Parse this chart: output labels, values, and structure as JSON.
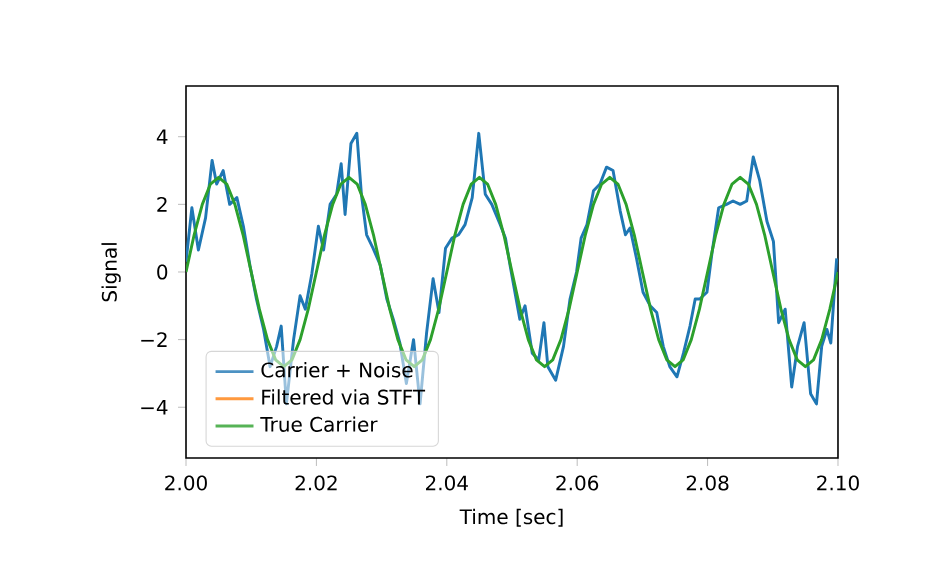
{
  "chart_data": {
    "type": "line",
    "xlabel": "Time [sec]",
    "ylabel": "Signal",
    "xlim": [
      2.0,
      2.1
    ],
    "ylim": [
      -5.5,
      5.5
    ],
    "xticks": [
      {
        "value": 2.0,
        "label": "2.00"
      },
      {
        "value": 2.02,
        "label": "2.02"
      },
      {
        "value": 2.04,
        "label": "2.04"
      },
      {
        "value": 2.06,
        "label": "2.06"
      },
      {
        "value": 2.08,
        "label": "2.08"
      },
      {
        "value": 2.1,
        "label": "2.10"
      }
    ],
    "yticks": [
      {
        "value": -4,
        "label": "−4"
      },
      {
        "value": -2,
        "label": "−2"
      },
      0,
      2,
      4
    ],
    "legend": "bottom left",
    "grid": false,
    "marker": "none",
    "line_style": "solid",
    "x": [
      2.0,
      2.00125,
      2.0025,
      2.00375,
      2.005,
      2.00625,
      2.0075,
      2.00875,
      2.01,
      2.01125,
      2.0125,
      2.01375,
      2.015,
      2.01625,
      2.0175,
      2.01875,
      2.02,
      2.02125,
      2.0225,
      2.02375,
      2.025,
      2.02625,
      2.0275,
      2.02875,
      2.03,
      2.03125,
      2.0325,
      2.03375,
      2.035,
      2.03625,
      2.0375,
      2.03875,
      2.04,
      2.04125,
      2.0425,
      2.04375,
      2.045,
      2.04625,
      2.0475,
      2.04875,
      2.05,
      2.05125,
      2.0525,
      2.05375,
      2.055,
      2.05625,
      2.0575,
      2.05875,
      2.06,
      2.06125,
      2.0625,
      2.06375,
      2.065,
      2.06625,
      2.0675,
      2.06875,
      2.07,
      2.07125,
      2.0725,
      2.07375,
      2.075,
      2.07625,
      2.0775,
      2.07875,
      2.08,
      2.08125,
      2.0825,
      2.08375,
      2.085,
      2.08625,
      2.0875,
      2.08875,
      2.09,
      2.09125,
      2.0925,
      2.09375,
      2.095,
      2.09625,
      2.0975,
      2.09875,
      2.1
    ],
    "series": [
      {
        "name": "Carrier + Noise",
        "color": "#1f77b4",
        "x": [
          2.0,
          2.0009,
          2.0019,
          2.003,
          2.004,
          2.0047,
          2.0057,
          2.0067,
          2.0078,
          2.0088,
          2.0098,
          2.0108,
          2.0119,
          2.0129,
          2.0139,
          2.0146,
          2.0154,
          2.0165,
          2.0175,
          2.0183,
          2.0193,
          2.0203,
          2.0211,
          2.0221,
          2.0231,
          2.0238,
          2.0244,
          2.0253,
          2.0262,
          2.0269,
          2.0277,
          2.0287,
          2.0298,
          2.0308,
          2.0318,
          2.0328,
          2.0338,
          2.0349,
          2.0359,
          2.0369,
          2.0379,
          2.0388,
          2.0398,
          2.0408,
          2.0418,
          2.0428,
          2.0439,
          2.0449,
          2.0459,
          2.0469,
          2.0482,
          2.049,
          2.0497,
          2.0512,
          2.052,
          2.0531,
          2.0541,
          2.0549,
          2.0555,
          2.0567,
          2.0579,
          2.0589,
          2.0599,
          2.0606,
          2.0615,
          2.0625,
          2.0635,
          2.0645,
          2.0655,
          2.0666,
          2.0674,
          2.0681,
          2.0691,
          2.0701,
          2.0712,
          2.0722,
          2.0732,
          2.0742,
          2.0753,
          2.0763,
          2.0773,
          2.0781,
          2.0788,
          2.0799,
          2.0807,
          2.0817,
          2.0829,
          2.0839,
          2.085,
          2.086,
          2.087,
          2.088,
          2.0891,
          2.0901,
          2.0909,
          2.0919,
          2.0929,
          2.0938,
          2.0948,
          2.0958,
          2.0967,
          2.0975,
          2.0983,
          2.0989,
          2.0998
        ],
        "values": [
          0.3,
          1.9,
          0.65,
          1.6,
          3.3,
          2.6,
          3.0,
          2.0,
          2.2,
          1.35,
          0.2,
          -0.8,
          -1.7,
          -2.8,
          -2.2,
          -1.6,
          -3.9,
          -2.0,
          -0.7,
          -1.1,
          -0.05,
          1.35,
          0.65,
          2.0,
          2.3,
          3.2,
          1.7,
          3.8,
          4.1,
          2.3,
          1.1,
          0.7,
          0.2,
          -0.8,
          -1.4,
          -2.1,
          -3.3,
          -2.0,
          -3.9,
          -1.8,
          -0.2,
          -1.2,
          0.7,
          1.0,
          1.1,
          1.4,
          2.2,
          4.1,
          2.3,
          2.0,
          1.4,
          1.0,
          0.2,
          -1.4,
          -1.0,
          -2.4,
          -2.6,
          -1.5,
          -2.8,
          -3.2,
          -2.2,
          -0.8,
          0.0,
          1.0,
          1.4,
          2.4,
          2.6,
          3.1,
          3.0,
          1.8,
          1.1,
          1.3,
          0.4,
          -0.6,
          -1.0,
          -1.2,
          -2.2,
          -2.8,
          -3.1,
          -2.4,
          -1.6,
          -0.8,
          -0.8,
          -0.6,
          0.6,
          1.9,
          2.0,
          2.1,
          2.0,
          2.1,
          3.4,
          2.7,
          1.5,
          0.9,
          -1.5,
          -1.1,
          -3.4,
          -2.2,
          -1.5,
          -3.6,
          -3.9,
          -2.2,
          -1.7,
          -2.1,
          0.4
        ]
      },
      {
        "name": "Filtered via STFT",
        "color": "#ff7f0e",
        "values": [
          null,
          null,
          null,
          null,
          null,
          null,
          null,
          null,
          null,
          null,
          null,
          null,
          null,
          null,
          null,
          null,
          null,
          null,
          null,
          null,
          null,
          null,
          null,
          null,
          null,
          null,
          null,
          null,
          null,
          null,
          null,
          null,
          null,
          null,
          null,
          null,
          null,
          null,
          null,
          null,
          null,
          null,
          null,
          null,
          null,
          null,
          null,
          null,
          null,
          null,
          null,
          null,
          null,
          null,
          null,
          null,
          null,
          null,
          null,
          null,
          null,
          null,
          null,
          null,
          null,
          null,
          null,
          null,
          null,
          null,
          null,
          null,
          null,
          null,
          null,
          null,
          null,
          null,
          null,
          null,
          null
        ]
      },
      {
        "name": "True Carrier",
        "color": "#2ca02c",
        "values": [
          0.0,
          1.1,
          2.0,
          2.6,
          2.8,
          2.6,
          2.0,
          1.1,
          0.0,
          -1.1,
          -2.0,
          -2.6,
          -2.8,
          -2.6,
          -2.0,
          -1.1,
          0.0,
          1.1,
          2.0,
          2.6,
          2.8,
          2.6,
          2.0,
          1.1,
          0.0,
          -1.1,
          -2.0,
          -2.6,
          -2.8,
          -2.6,
          -2.0,
          -1.1,
          0.0,
          1.1,
          2.0,
          2.6,
          2.8,
          2.6,
          2.0,
          1.1,
          0.0,
          -1.1,
          -2.0,
          -2.6,
          -2.8,
          -2.6,
          -2.0,
          -1.1,
          0.0,
          1.1,
          2.0,
          2.6,
          2.8,
          2.6,
          2.0,
          1.1,
          0.0,
          -1.1,
          -2.0,
          -2.6,
          -2.8,
          -2.6,
          -2.0,
          -1.1,
          0.0,
          1.1,
          2.0,
          2.6,
          2.8,
          2.6,
          2.0,
          1.1,
          0.0,
          -1.1,
          -2.0,
          -2.6,
          -2.8,
          -2.6,
          -2.0,
          -1.1,
          0.0
        ]
      }
    ]
  }
}
